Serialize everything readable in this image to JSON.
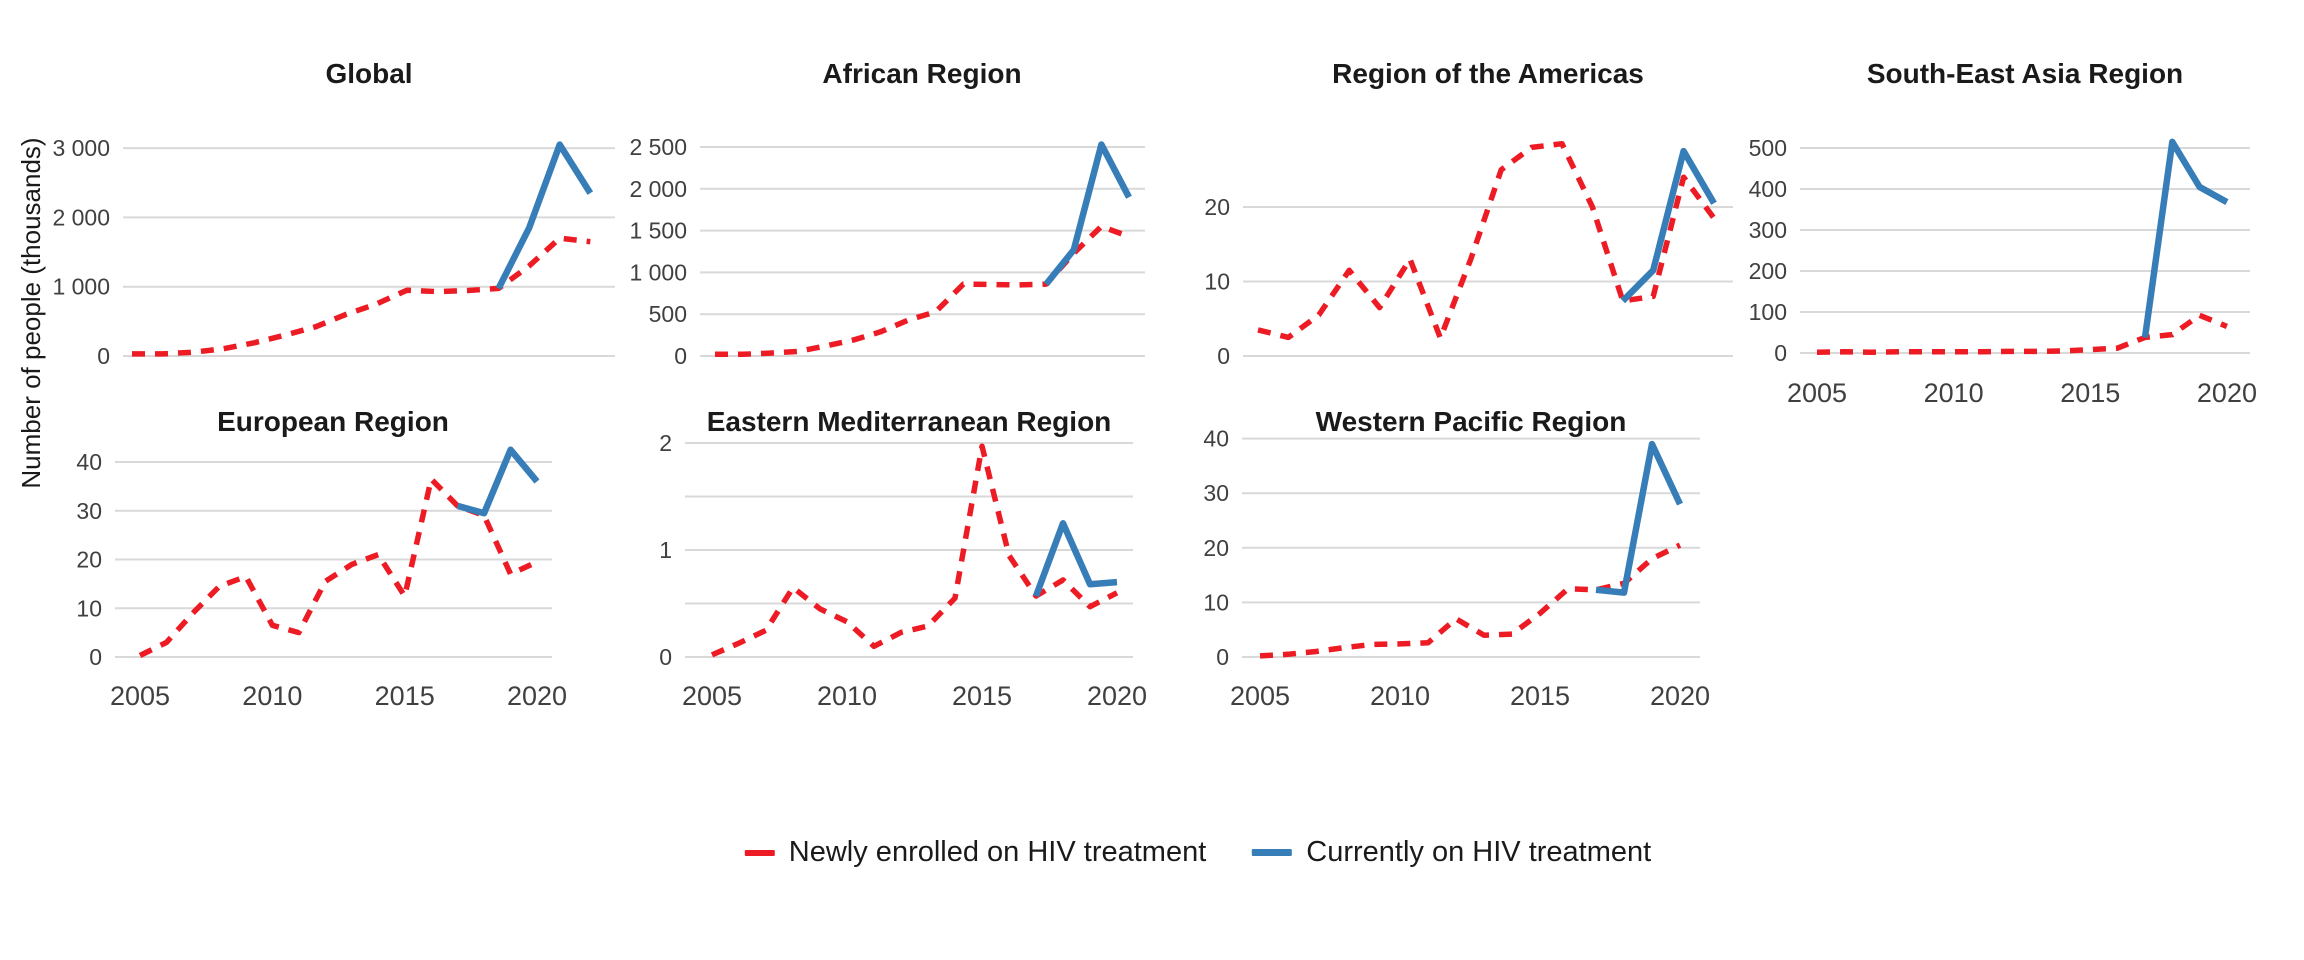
{
  "figure": {
    "y_axis_label": "Number of people (thousands)",
    "x_tick_years": [
      2005,
      2010,
      2015,
      2020
    ],
    "x_tick_labels": [
      "2005",
      "2010",
      "2015",
      "2020"
    ],
    "colors": {
      "newly": "#ED1C24",
      "currently": "#377EB8",
      "grid": "#D9D9D9",
      "axis_text": "#404040",
      "title_text": "#1A1A1A",
      "background": "#FFFFFF"
    },
    "legend": [
      {
        "label": "Newly enrolled on HIV treatment",
        "series": "newly",
        "style": "dashed"
      },
      {
        "label": "Currently on HIV treatment",
        "series": "currently",
        "style": "solid"
      }
    ]
  },
  "chart_data": [
    {
      "type": "line",
      "id": "global",
      "title": "Global",
      "xlabel": "",
      "ylabel": "Number of people (thousands)",
      "x_range": [
        2005,
        2020
      ],
      "ylim": [
        0,
        3200
      ],
      "grid": true,
      "y_ticks": [
        {
          "v": 0,
          "label": "0"
        },
        {
          "v": 1000,
          "label": "1 000"
        },
        {
          "v": 2000,
          "label": "2 000"
        },
        {
          "v": 3000,
          "label": "3 000"
        }
      ],
      "show_x_labels": false,
      "series": [
        {
          "name": "Newly enrolled on HIV treatment",
          "color_key": "newly",
          "dashed": true,
          "x_start": 2005,
          "values": [
            30,
            30,
            55,
            105,
            190,
            300,
            420,
            600,
            750,
            950,
            930,
            945,
            975,
            1300,
            1700,
            1650
          ]
        },
        {
          "name": "Currently on HIV treatment",
          "color_key": "currently",
          "dashed": false,
          "x_start": 2017,
          "values": [
            975,
            1850,
            3050,
            2350
          ]
        }
      ]
    },
    {
      "type": "line",
      "id": "african-region",
      "title": "African Region",
      "xlabel": "",
      "ylabel": "Number of people (thousands)",
      "x_range": [
        2005,
        2020
      ],
      "ylim": [
        0,
        2600
      ],
      "grid": true,
      "y_ticks": [
        {
          "v": 0,
          "label": "0"
        },
        {
          "v": 500,
          "label": "500"
        },
        {
          "v": 1000,
          "label": "1 000"
        },
        {
          "v": 1500,
          "label": "1 500"
        },
        {
          "v": 2000,
          "label": "2 000"
        },
        {
          "v": 2500,
          "label": "2 500"
        }
      ],
      "show_x_labels": false,
      "series": [
        {
          "name": "Newly enrolled on HIV treatment",
          "color_key": "newly",
          "dashed": true,
          "x_start": 2005,
          "values": [
            20,
            20,
            35,
            55,
            120,
            190,
            290,
            430,
            530,
            860,
            855,
            850,
            860,
            1230,
            1550,
            1430
          ]
        },
        {
          "name": "Currently on HIV treatment",
          "color_key": "currently",
          "dashed": false,
          "x_start": 2017,
          "values": [
            860,
            1270,
            2530,
            1900
          ]
        }
      ]
    },
    {
      "type": "line",
      "id": "region-of-the-americas",
      "title": "Region of the Americas",
      "xlabel": "",
      "ylabel": "Number of people (thousands)",
      "x_range": [
        2005,
        2020
      ],
      "ylim": [
        0,
        30
      ],
      "grid": true,
      "y_ticks": [
        {
          "v": 0,
          "label": "0"
        },
        {
          "v": 10,
          "label": "10"
        },
        {
          "v": 20,
          "label": "20"
        }
      ],
      "show_x_labels": false,
      "series": [
        {
          "name": "Newly enrolled on HIV treatment",
          "color_key": "newly",
          "dashed": true,
          "x_start": 2005,
          "values": [
            3.5,
            2.5,
            5.5,
            11.5,
            6.5,
            13,
            2.4,
            13,
            25,
            28,
            28.5,
            20,
            7.4,
            8,
            24,
            18.5
          ]
        },
        {
          "name": "Currently on HIV treatment",
          "color_key": "currently",
          "dashed": false,
          "x_start": 2017,
          "values": [
            7.4,
            11.5,
            27.5,
            20.5
          ]
        }
      ]
    },
    {
      "type": "line",
      "id": "south-east-asia-region",
      "title": "South-East Asia Region",
      "xlabel": "",
      "ylabel": "Number of people (thousands)",
      "x_range": [
        2005,
        2020
      ],
      "ylim": [
        0,
        530
      ],
      "grid": true,
      "y_ticks": [
        {
          "v": 0,
          "label": "0"
        },
        {
          "v": 100,
          "label": "100"
        },
        {
          "v": 200,
          "label": "200"
        },
        {
          "v": 300,
          "label": "300"
        },
        {
          "v": 400,
          "label": "400"
        },
        {
          "v": 500,
          "label": "500"
        }
      ],
      "show_x_labels": true,
      "series": [
        {
          "name": "Newly enrolled on HIV treatment",
          "color_key": "newly",
          "dashed": true,
          "x_start": 2005,
          "values": [
            2,
            3,
            2,
            3,
            3,
            3,
            3,
            4,
            4,
            5,
            8,
            12,
            38,
            45,
            92,
            65
          ]
        },
        {
          "name": "Currently on HIV treatment",
          "color_key": "currently",
          "dashed": false,
          "x_start": 2017,
          "values": [
            38,
            515,
            405,
            368
          ]
        }
      ]
    },
    {
      "type": "line",
      "id": "european-region",
      "title": "European Region",
      "xlabel": "",
      "ylabel": "Number of people (thousands)",
      "x_range": [
        2005,
        2020
      ],
      "ylim": [
        0,
        44
      ],
      "grid": true,
      "y_ticks": [
        {
          "v": 0,
          "label": "0"
        },
        {
          "v": 10,
          "label": "10"
        },
        {
          "v": 20,
          "label": "20"
        },
        {
          "v": 30,
          "label": "30"
        },
        {
          "v": 40,
          "label": "40"
        }
      ],
      "show_x_labels": true,
      "series": [
        {
          "name": "Newly enrolled on HIV treatment",
          "color_key": "newly",
          "dashed": true,
          "x_start": 2005,
          "values": [
            0.3,
            3,
            9,
            14.5,
            16.5,
            6.5,
            5,
            15.5,
            19,
            21,
            12.5,
            36.5,
            31,
            29,
            17,
            19.5
          ]
        },
        {
          "name": "Currently on HIV treatment",
          "color_key": "currently",
          "dashed": false,
          "x_start": 2017,
          "values": [
            31,
            29.5,
            42.5,
            36
          ]
        }
      ]
    },
    {
      "type": "line",
      "id": "eastern-mediterranean-region",
      "title": "Eastern Mediterranean Region",
      "xlabel": "",
      "ylabel": "Number of people (thousands)",
      "x_range": [
        2005,
        2020
      ],
      "ylim": [
        0,
        2.05
      ],
      "grid": true,
      "y_ticks": [
        {
          "v": 0,
          "label": "0"
        },
        {
          "v": 0.5,
          "label": ""
        },
        {
          "v": 1,
          "label": "1"
        },
        {
          "v": 1.5,
          "label": ""
        },
        {
          "v": 2,
          "label": "2"
        }
      ],
      "show_x_labels": true,
      "series": [
        {
          "name": "Newly enrolled on HIV treatment",
          "color_key": "newly",
          "dashed": true,
          "x_start": 2005,
          "values": [
            0.02,
            0.13,
            0.25,
            0.65,
            0.45,
            0.33,
            0.1,
            0.23,
            0.29,
            0.55,
            1.97,
            0.95,
            0.57,
            0.72,
            0.47,
            0.6
          ]
        },
        {
          "name": "Currently on HIV treatment",
          "color_key": "currently",
          "dashed": false,
          "x_start": 2017,
          "values": [
            0.57,
            1.25,
            0.68,
            0.7
          ]
        }
      ]
    },
    {
      "type": "line",
      "id": "western-pacific-region",
      "title": "Western Pacific Region",
      "xlabel": "",
      "ylabel": "Number of people (thousands)",
      "x_range": [
        2005,
        2020
      ],
      "ylim": [
        0,
        41
      ],
      "grid": true,
      "y_ticks": [
        {
          "v": 0,
          "label": "0"
        },
        {
          "v": 10,
          "label": "10"
        },
        {
          "v": 20,
          "label": "20"
        },
        {
          "v": 30,
          "label": "30"
        },
        {
          "v": 40,
          "label": "40"
        }
      ],
      "show_x_labels": true,
      "series": [
        {
          "name": "Newly enrolled on HIV treatment",
          "color_key": "newly",
          "dashed": true,
          "x_start": 2005,
          "values": [
            0.2,
            0.5,
            1,
            1.7,
            2.3,
            2.4,
            2.6,
            7,
            4,
            4.2,
            8,
            12.5,
            12.3,
            13.5,
            18,
            20.5
          ]
        },
        {
          "name": "Currently on HIV treatment",
          "color_key": "currently",
          "dashed": false,
          "x_start": 2017,
          "values": [
            12.3,
            11.8,
            39,
            28
          ]
        }
      ]
    }
  ]
}
